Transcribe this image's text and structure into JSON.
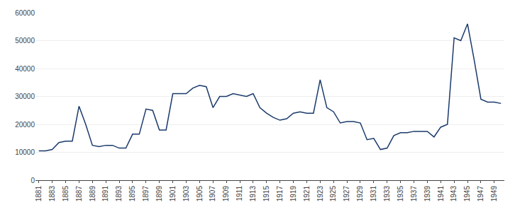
{
  "chart_data": {
    "type": "line",
    "x": [
      1881,
      1882,
      1883,
      1884,
      1885,
      1886,
      1887,
      1888,
      1889,
      1890,
      1891,
      1892,
      1893,
      1894,
      1895,
      1896,
      1897,
      1898,
      1899,
      1900,
      1901,
      1902,
      1903,
      1904,
      1905,
      1906,
      1907,
      1908,
      1909,
      1910,
      1911,
      1912,
      1913,
      1914,
      1915,
      1916,
      1917,
      1918,
      1919,
      1920,
      1921,
      1922,
      1923,
      1924,
      1925,
      1926,
      1927,
      1928,
      1929,
      1930,
      1931,
      1932,
      1933,
      1934,
      1935,
      1936,
      1937,
      1938,
      1939,
      1940,
      1941,
      1942,
      1943,
      1944,
      1945,
      1946,
      1947,
      1948,
      1949,
      1950
    ],
    "values": [
      10500,
      10500,
      11000,
      13500,
      14000,
      14000,
      26500,
      20000,
      12500,
      12000,
      12500,
      12500,
      11500,
      11500,
      16500,
      16500,
      25500,
      25000,
      18000,
      18000,
      31000,
      31000,
      31000,
      33000,
      34000,
      33500,
      26000,
      30000,
      30000,
      31000,
      30500,
      30000,
      31000,
      26000,
      24000,
      22500,
      21500,
      22000,
      24000,
      24500,
      24000,
      24000,
      36000,
      26000,
      24500,
      20500,
      21000,
      21000,
      20500,
      14500,
      15000,
      11000,
      11500,
      16000,
      17000,
      17000,
      17500,
      17500,
      17500,
      15500,
      19000,
      20000,
      51000,
      50000,
      56000,
      43000,
      29000,
      28000,
      28000,
      27500
    ],
    "color": "#1a3a6b",
    "xlim": [
      1880.5,
      1950.5
    ],
    "xticks": [
      1881,
      1883,
      1885,
      1887,
      1889,
      1891,
      1893,
      1895,
      1897,
      1899,
      1901,
      1903,
      1905,
      1907,
      1909,
      1911,
      1913,
      1915,
      1917,
      1919,
      1921,
      1923,
      1925,
      1927,
      1929,
      1931,
      1933,
      1935,
      1937,
      1939,
      1941,
      1943,
      1945,
      1947,
      1949
    ],
    "ylim": [
      0,
      60000
    ],
    "yticks": [
      0,
      10000,
      20000,
      30000,
      40000,
      50000,
      60000
    ],
    "grid": "y"
  }
}
